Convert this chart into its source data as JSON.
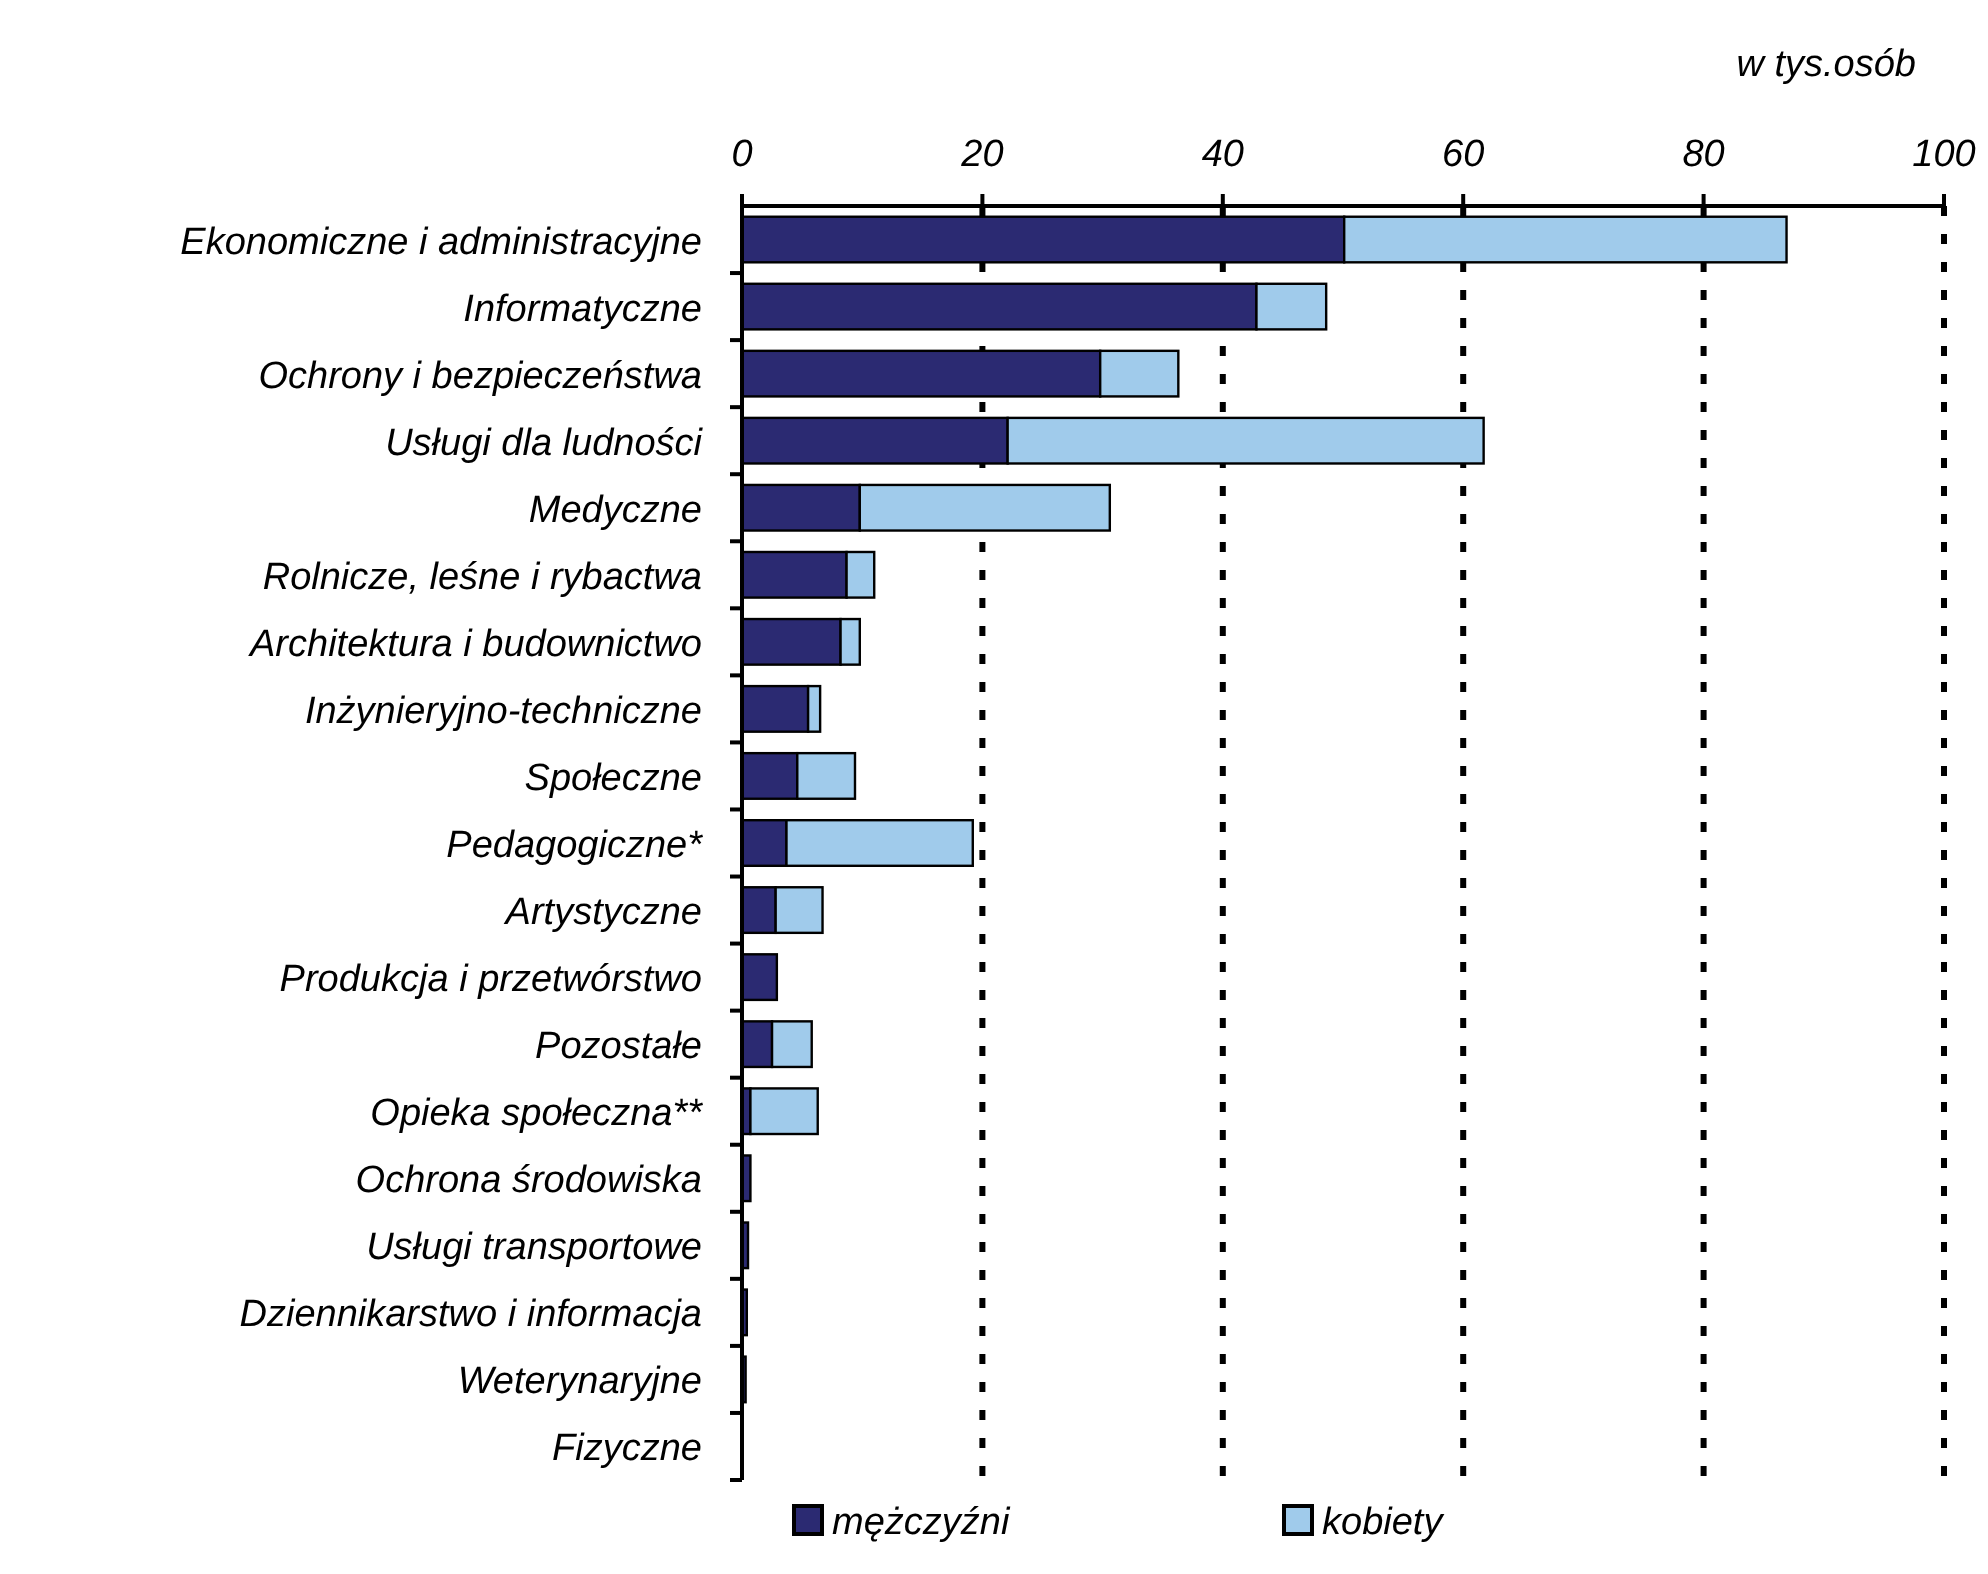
{
  "chart_data": {
    "type": "bar",
    "orientation": "horizontal",
    "stacked": true,
    "categories": [
      "Ekonomiczne i administracyjne",
      "Informatyczne",
      "Ochrony i bezpieczeństwa",
      "Usługi dla ludności",
      "Medyczne",
      "Rolnicze, leśne i rybactwa",
      "Architektura i budownictwo",
      "Inżynieryjno-techniczne",
      "Społeczne",
      "Pedagogiczne*",
      "Artystyczne",
      "Produkcja i przetwórstwo",
      "Pozostałe",
      "Opieka społeczna**",
      "Ochrona środowiska",
      "Usługi transportowe",
      "Dziennikarstwo i informacja",
      "Weterynaryjne",
      "Fizyczne"
    ],
    "series": [
      {
        "name": "mężczyźni",
        "color": "#2b2a72",
        "values": [
          50.1,
          42.8,
          29.8,
          22.1,
          9.8,
          8.7,
          8.2,
          5.5,
          4.6,
          3.7,
          2.8,
          2.9,
          2.5,
          0.7,
          0.7,
          0.5,
          0.4,
          0.3,
          null
        ]
      },
      {
        "name": "kobiety",
        "color": "#a0cbeb",
        "values": [
          36.8,
          5.8,
          6.5,
          39.6,
          20.8,
          2.3,
          1.6,
          1.0,
          4.8,
          15.5,
          3.9,
          0,
          3.3,
          5.6,
          0,
          0,
          0,
          0,
          0
        ]
      }
    ],
    "xlim": [
      0,
      100
    ],
    "xticks": [
      0,
      20,
      40,
      60,
      80,
      100
    ],
    "grid": "x",
    "legend": "bottom",
    "annotations": [
      "w tys.osób"
    ]
  }
}
